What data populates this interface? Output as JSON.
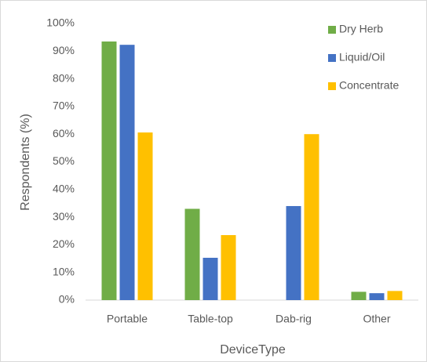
{
  "chart_data": {
    "type": "bar",
    "xlabel": "DeviceType",
    "ylabel": "Respondents (%)",
    "categories": [
      "Portable",
      "Table-top",
      "Dab-rig",
      "Other"
    ],
    "series": [
      {
        "name": "Dry Herb",
        "color": "#70ad47",
        "values": [
          93.5,
          33,
          0,
          3
        ]
      },
      {
        "name": "Liquid/Oil",
        "color": "#4472c4",
        "values": [
          92.3,
          15.3,
          34,
          2.5
        ]
      },
      {
        "name": "Concentrate",
        "color": "#ffc000",
        "values": [
          60.6,
          23.5,
          60,
          3.3
        ]
      }
    ],
    "ylim": [
      0,
      100
    ],
    "yticks": [
      {
        "value": 0,
        "label": "0%"
      },
      {
        "value": 10,
        "label": "10%"
      },
      {
        "value": 20,
        "label": "20%"
      },
      {
        "value": 30,
        "label": "30%"
      },
      {
        "value": 40,
        "label": "40%"
      },
      {
        "value": 50,
        "label": "50%"
      },
      {
        "value": 60,
        "label": "60%"
      },
      {
        "value": 70,
        "label": "70%"
      },
      {
        "value": 80,
        "label": "80%"
      },
      {
        "value": 90,
        "label": "90%"
      },
      {
        "value": 100,
        "label": "100%"
      }
    ],
    "grid": false,
    "legend": "top-right"
  }
}
